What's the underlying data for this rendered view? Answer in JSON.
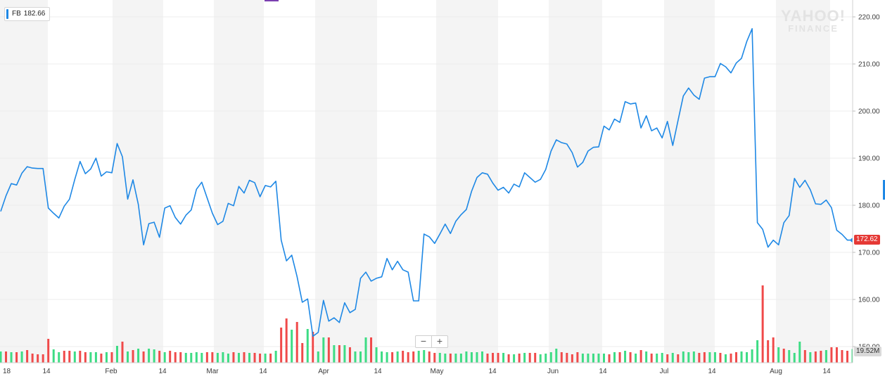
{
  "legend": {
    "symbol": "FB",
    "value": "182.66"
  },
  "brand": {
    "line1": "YAHOO!",
    "line2": "FINANCE"
  },
  "price_tag": "172.62",
  "volume_tag": "19.52M",
  "zoom": {
    "minus": "−",
    "plus": "+"
  },
  "colors": {
    "line": "#1e88e5",
    "up": "#3ddc84",
    "down": "#f04a4a",
    "band": "#f4f4f4"
  },
  "chart_data": {
    "type": "line",
    "title": "",
    "xlabel": "",
    "ylabel": "",
    "ylim": [
      150,
      222
    ],
    "y_ticks": [
      "220.00",
      "210.00",
      "200.00",
      "190.00",
      "180.00",
      "170.00",
      "160.00",
      "150.00"
    ],
    "x_ticks": [
      "18",
      "14",
      "Feb",
      "14",
      "Mar",
      "14",
      "Apr",
      "14",
      "May",
      "14",
      "Jun",
      "14",
      "Jul",
      "14",
      "Aug",
      "14"
    ],
    "grid": true,
    "series": [
      {
        "name": "FB",
        "values": [
          178.7,
          182.0,
          184.6,
          184.3,
          186.8,
          188.2,
          187.9,
          187.8,
          187.8,
          179.4,
          178.3,
          177.3,
          179.8,
          181.3,
          185.5,
          189.3,
          186.7,
          187.7,
          190.0,
          186.2,
          187.1,
          186.9,
          193.1,
          190.3,
          181.3,
          185.4,
          180.2,
          171.6,
          176.1,
          176.4,
          173.2,
          179.4,
          179.9,
          177.4,
          176.0,
          177.9,
          179.0,
          183.4,
          184.9,
          181.6,
          178.3,
          175.9,
          176.6,
          180.4,
          179.9,
          184.0,
          182.6,
          185.3,
          184.8,
          181.8,
          184.2,
          183.9,
          185.1,
          172.6,
          168.2,
          169.4,
          164.9,
          159.4,
          160.1,
          152.2,
          153.0,
          159.8,
          155.4,
          156.1,
          155.1,
          159.3,
          157.2,
          157.9,
          164.5,
          165.8,
          163.9,
          164.5,
          164.8,
          168.7,
          166.3,
          168.1,
          166.3,
          165.8,
          159.7,
          159.7,
          173.9,
          173.3,
          171.9,
          173.9,
          176.0,
          174.0,
          176.6,
          178.0,
          179.1,
          183.0,
          185.9,
          186.9,
          186.6,
          184.7,
          183.2,
          183.8,
          182.6,
          184.5,
          183.9,
          186.9,
          185.9,
          184.9,
          185.5,
          187.6,
          191.5,
          193.9,
          193.3,
          193.0,
          191.2,
          188.1,
          189.1,
          191.5,
          192.3,
          192.4,
          196.8,
          196.0,
          198.3,
          197.6,
          202.0,
          201.5,
          201.7,
          196.4,
          199.0,
          195.8,
          196.4,
          194.3,
          197.8,
          192.7,
          198.0,
          203.2,
          204.9,
          203.4,
          202.5,
          207.0,
          207.3,
          207.3,
          210.1,
          209.4,
          208.1,
          210.2,
          211.2,
          214.8,
          217.5,
          176.3,
          174.9,
          171.1,
          172.6,
          171.6,
          176.3,
          177.8,
          185.7,
          183.8,
          185.3,
          183.3,
          180.3,
          180.2,
          181.1,
          179.5,
          174.7,
          173.8,
          172.6,
          172.6
        ]
      }
    ],
    "volume": {
      "label": "Volume",
      "values": [
        16,
        16,
        15,
        15,
        16,
        18,
        13,
        12,
        12,
        34,
        19,
        15,
        17,
        17,
        16,
        17,
        15,
        15,
        15,
        13,
        15,
        15,
        24,
        30,
        16,
        18,
        20,
        16,
        20,
        19,
        17,
        15,
        17,
        15,
        15,
        14,
        14,
        15,
        14,
        15,
        15,
        14,
        15,
        13,
        15,
        14,
        15,
        14,
        14,
        13,
        13,
        13,
        17,
        50,
        63,
        47,
        58,
        28,
        48,
        44,
        16,
        36,
        36,
        25,
        25,
        25,
        22,
        16,
        16,
        36,
        36,
        22,
        16,
        15,
        15,
        16,
        17,
        15,
        16,
        17,
        18,
        16,
        14,
        14,
        13,
        13,
        13,
        13,
        16,
        15,
        15,
        16,
        13,
        14,
        14,
        14,
        12,
        12,
        13,
        14,
        14,
        14,
        12,
        13,
        15,
        20,
        15,
        14,
        12,
        15,
        13,
        13,
        13,
        13,
        13,
        12,
        15,
        15,
        17,
        15,
        13,
        18,
        16,
        13,
        13,
        14,
        12,
        14,
        12,
        16,
        15,
        16,
        14,
        15,
        15,
        15,
        14,
        12,
        13,
        15,
        16,
        15,
        19,
        32,
        110,
        32,
        36,
        22,
        20,
        18,
        14,
        30,
        18,
        15,
        16,
        17,
        18,
        22,
        22,
        18,
        17,
        19.5
      ],
      "up": [
        true,
        false,
        true,
        false,
        true,
        false,
        false,
        false,
        false,
        false,
        true,
        true,
        false,
        false,
        true,
        false,
        false,
        true,
        true,
        false,
        true,
        false,
        true,
        false,
        true,
        false,
        true,
        false,
        true,
        true,
        false,
        true,
        false,
        false,
        false,
        true,
        true,
        true,
        true,
        false,
        false,
        true,
        true,
        true,
        false,
        true,
        false,
        true,
        false,
        false,
        true,
        false,
        true,
        false,
        false,
        true,
        false,
        false,
        true,
        false,
        true,
        true,
        false,
        true,
        false,
        true,
        false,
        true,
        true,
        true,
        false,
        true,
        true,
        true,
        false,
        true,
        false,
        false,
        false,
        true,
        true,
        false,
        false,
        true,
        true,
        false,
        true,
        true,
        true,
        true,
        true,
        true,
        false,
        false,
        false,
        true,
        false,
        true,
        false,
        true,
        false,
        false,
        true,
        true,
        true,
        true,
        false,
        false,
        false,
        false,
        true,
        true,
        true,
        true,
        true,
        false,
        true,
        false,
        true,
        false,
        true,
        false,
        true,
        false,
        true,
        true,
        false,
        true,
        false,
        true,
        true,
        true,
        false,
        false,
        true,
        true,
        false,
        true,
        false,
        false,
        true,
        true,
        true,
        true,
        false,
        false,
        false,
        true,
        false,
        true,
        true,
        true,
        false,
        true,
        false,
        false,
        true,
        false,
        false,
        false,
        false,
        true
      ]
    }
  }
}
